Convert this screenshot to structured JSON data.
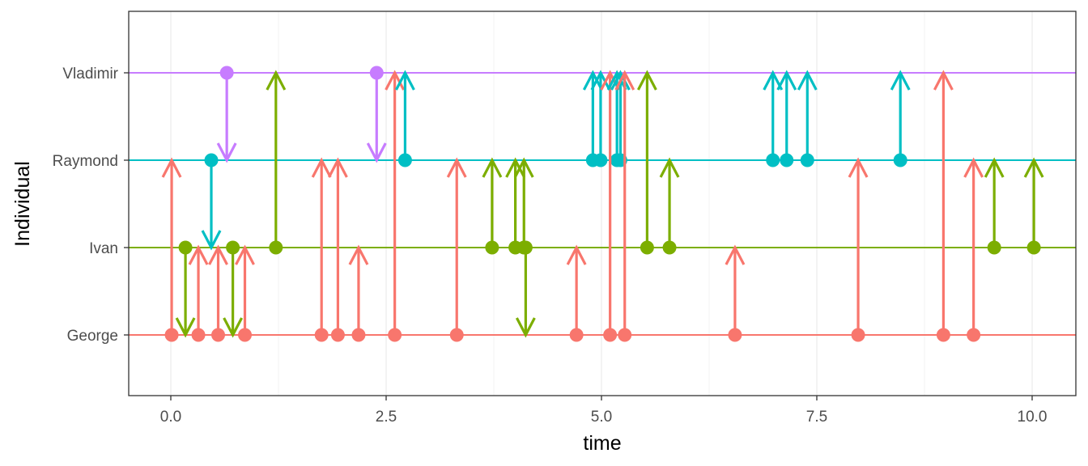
{
  "chart_data": {
    "type": "line",
    "title": "",
    "xlabel": "time",
    "ylabel": "Individual",
    "xlim": [
      -0.5,
      10.5
    ],
    "x_ticks": [
      {
        "value": 0,
        "label": "0.0"
      },
      {
        "value": 2.5,
        "label": "2.5"
      },
      {
        "value": 5,
        "label": "5.0"
      },
      {
        "value": 7.5,
        "label": "7.5"
      },
      {
        "value": 10,
        "label": "10.0"
      }
    ],
    "categories": [
      "George",
      "Ivan",
      "Raymond",
      "Vladimir"
    ],
    "grid": true,
    "legend": "none",
    "colors": {
      "George": "#F8766D",
      "Ivan": "#7CAE00",
      "Raymond": "#00BFC4",
      "Vladimir": "#C77CFF"
    },
    "events": [
      {
        "time": 0.01,
        "from": "George",
        "to": "Raymond"
      },
      {
        "time": 0.17,
        "from": "Ivan",
        "to": "George"
      },
      {
        "time": 0.32,
        "from": "George",
        "to": "Ivan"
      },
      {
        "time": 0.47,
        "from": "Raymond",
        "to": "Ivan"
      },
      {
        "time": 0.55,
        "from": "George",
        "to": "Ivan"
      },
      {
        "time": 0.65,
        "from": "Vladimir",
        "to": "Raymond"
      },
      {
        "time": 0.72,
        "from": "Ivan",
        "to": "George"
      },
      {
        "time": 0.86,
        "from": "George",
        "to": "Ivan"
      },
      {
        "time": 1.22,
        "from": "Ivan",
        "to": "Vladimir"
      },
      {
        "time": 1.75,
        "from": "George",
        "to": "Raymond"
      },
      {
        "time": 1.94,
        "from": "George",
        "to": "Raymond"
      },
      {
        "time": 2.18,
        "from": "George",
        "to": "Ivan"
      },
      {
        "time": 2.39,
        "from": "Vladimir",
        "to": "Raymond"
      },
      {
        "time": 2.6,
        "from": "George",
        "to": "Vladimir"
      },
      {
        "time": 2.72,
        "from": "Raymond",
        "to": "Vladimir"
      },
      {
        "time": 3.32,
        "from": "George",
        "to": "Raymond"
      },
      {
        "time": 3.73,
        "from": "Ivan",
        "to": "Raymond"
      },
      {
        "time": 4.0,
        "from": "Ivan",
        "to": "Raymond"
      },
      {
        "time": 4.1,
        "from": "Ivan",
        "to": "Raymond"
      },
      {
        "time": 4.12,
        "from": "Ivan",
        "to": "George"
      },
      {
        "time": 4.71,
        "from": "George",
        "to": "Ivan"
      },
      {
        "time": 4.9,
        "from": "Raymond",
        "to": "Vladimir"
      },
      {
        "time": 4.99,
        "from": "Raymond",
        "to": "Vladimir"
      },
      {
        "time": 5.1,
        "from": "George",
        "to": "Vladimir"
      },
      {
        "time": 5.18,
        "from": "Raymond",
        "to": "Vladimir"
      },
      {
        "time": 5.22,
        "from": "Raymond",
        "to": "Vladimir"
      },
      {
        "time": 5.27,
        "from": "George",
        "to": "Vladimir"
      },
      {
        "time": 5.53,
        "from": "Ivan",
        "to": "Vladimir"
      },
      {
        "time": 5.79,
        "from": "Ivan",
        "to": "Raymond"
      },
      {
        "time": 6.55,
        "from": "George",
        "to": "Ivan"
      },
      {
        "time": 6.99,
        "from": "Raymond",
        "to": "Vladimir"
      },
      {
        "time": 7.15,
        "from": "Raymond",
        "to": "Vladimir"
      },
      {
        "time": 7.39,
        "from": "Raymond",
        "to": "Vladimir"
      },
      {
        "time": 7.98,
        "from": "George",
        "to": "Raymond"
      },
      {
        "time": 8.47,
        "from": "Raymond",
        "to": "Vladimir"
      },
      {
        "time": 8.97,
        "from": "George",
        "to": "Vladimir"
      },
      {
        "time": 9.32,
        "from": "George",
        "to": "Raymond"
      },
      {
        "time": 9.56,
        "from": "Ivan",
        "to": "Raymond"
      },
      {
        "time": 10.02,
        "from": "Ivan",
        "to": "Raymond"
      }
    ]
  }
}
